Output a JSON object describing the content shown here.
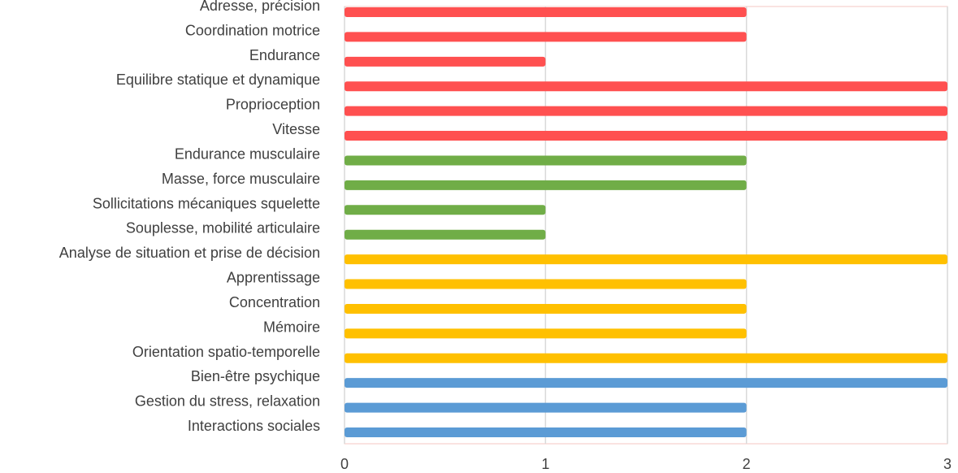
{
  "chart_data": {
    "type": "bar",
    "orientation": "horizontal",
    "title": "",
    "xlabel": "",
    "ylabel": "",
    "xlim": [
      0,
      3
    ],
    "x_ticks": [
      "0",
      "1",
      "2",
      "3"
    ],
    "grid": "vertical",
    "legend": "none",
    "categories": [
      "Adresse, précision",
      "Coordination motrice",
      "Endurance",
      "Equilibre statique et dynamique",
      "Proprioception",
      "Vitesse",
      "Endurance musculaire",
      "Masse,  force musculaire",
      "Sollicitations mécaniques squelette",
      "Souplesse, mobilité articulaire",
      "Analyse de situation et prise de décision",
      "Apprentissage",
      "Concentration",
      "Mémoire",
      "Orientation spatio-temporelle",
      "Bien-être psychique",
      "Gestion du stress, relaxation",
      "Interactions sociales"
    ],
    "values": [
      2,
      2,
      1,
      3,
      3,
      3,
      2,
      2,
      1,
      1,
      3,
      2,
      2,
      2,
      3,
      3,
      2,
      2
    ],
    "colors": [
      "#ff5050",
      "#ff5050",
      "#ff5050",
      "#ff5050",
      "#ff5050",
      "#ff5050",
      "#70ad47",
      "#70ad47",
      "#70ad47",
      "#70ad47",
      "#ffc000",
      "#ffc000",
      "#ffc000",
      "#ffc000",
      "#ffc000",
      "#5b9bd5",
      "#5b9bd5",
      "#5b9bd5"
    ],
    "plot_border_color": "#f4c7c3",
    "grid_color": "#d9d9d9"
  }
}
